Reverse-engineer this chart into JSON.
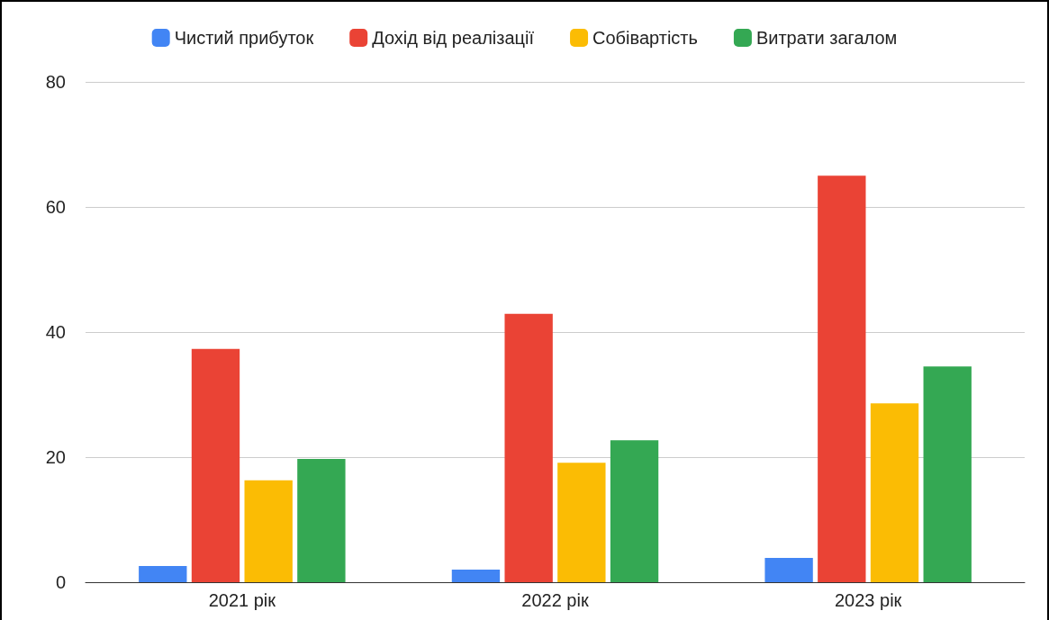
{
  "chart_data": {
    "type": "bar",
    "categories": [
      "2021 рік",
      "2022 рік",
      "2023 рік"
    ],
    "series": [
      {
        "name": "Чистий прибуток",
        "color": "#4285f4",
        "values": [
          2.6,
          2.0,
          3.9
        ]
      },
      {
        "name": "Дохід від реалізації",
        "color": "#ea4335",
        "values": [
          37.3,
          42.9,
          65.0
        ]
      },
      {
        "name": "Собівартість",
        "color": "#fbbc04",
        "values": [
          16.3,
          19.1,
          28.6
        ]
      },
      {
        "name": "Витрати загалом",
        "color": "#34a853",
        "values": [
          19.7,
          22.7,
          34.5
        ]
      }
    ],
    "ylim": [
      0,
      80
    ],
    "yticks": [
      0,
      20,
      40,
      60,
      80
    ],
    "grid": "y",
    "legend": "top"
  }
}
